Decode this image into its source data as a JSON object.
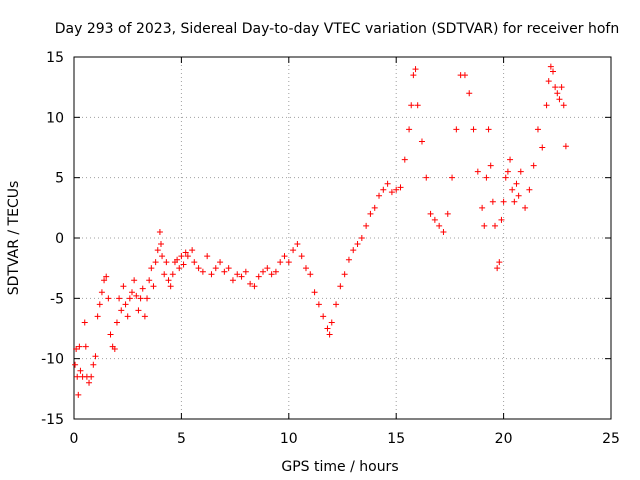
{
  "chart_data": {
    "type": "scatter",
    "title": "Day 293 of 2023, Sidereal Day-to-day VTEC variation (SDTVAR) for receiver hofn",
    "xlabel": "GPS time / hours",
    "ylabel": "SDTVAR / TECUs",
    "xlim": [
      0,
      25
    ],
    "ylim": [
      -15,
      15
    ],
    "xticks": [
      0,
      5,
      10,
      15,
      20,
      25
    ],
    "yticks": [
      -15,
      -10,
      -5,
      0,
      5,
      10,
      15
    ],
    "xtick_labels": [
      "0",
      "5",
      "10",
      "15",
      "20",
      "25"
    ],
    "ytick_labels": [
      "-15",
      "-10",
      "-5",
      "0",
      "5",
      "10",
      "15"
    ],
    "grid": true,
    "marker": "+",
    "color": "#ff0000",
    "series": [
      {
        "points": [
          [
            0.05,
            -10.5
          ],
          [
            0.1,
            -9.2
          ],
          [
            0.15,
            -11.5
          ],
          [
            0.2,
            -13.0
          ],
          [
            0.25,
            -9.0
          ],
          [
            0.3,
            -11.0
          ],
          [
            0.4,
            -11.5
          ],
          [
            0.5,
            -7.0
          ],
          [
            0.55,
            -9.0
          ],
          [
            0.6,
            -11.5
          ],
          [
            0.7,
            -12.0
          ],
          [
            0.8,
            -11.5
          ],
          [
            0.9,
            -10.5
          ],
          [
            1.0,
            -9.8
          ],
          [
            1.1,
            -6.5
          ],
          [
            1.2,
            -5.5
          ],
          [
            1.3,
            -4.5
          ],
          [
            1.4,
            -3.5
          ],
          [
            1.5,
            -3.2
          ],
          [
            1.6,
            -5.0
          ],
          [
            1.7,
            -8.0
          ],
          [
            1.8,
            -9.0
          ],
          [
            1.9,
            -9.2
          ],
          [
            2.0,
            -7.0
          ],
          [
            2.1,
            -5.0
          ],
          [
            2.2,
            -6.0
          ],
          [
            2.3,
            -4.0
          ],
          [
            2.4,
            -5.5
          ],
          [
            2.5,
            -6.5
          ],
          [
            2.6,
            -5.0
          ],
          [
            2.7,
            -4.5
          ],
          [
            2.8,
            -3.5
          ],
          [
            2.9,
            -4.8
          ],
          [
            3.0,
            -6.0
          ],
          [
            3.1,
            -5.0
          ],
          [
            3.2,
            -4.2
          ],
          [
            3.3,
            -6.5
          ],
          [
            3.4,
            -5.0
          ],
          [
            3.5,
            -3.5
          ],
          [
            3.6,
            -2.5
          ],
          [
            3.7,
            -4.0
          ],
          [
            3.8,
            -2.0
          ],
          [
            3.9,
            -1.0
          ],
          [
            4.0,
            0.5
          ],
          [
            4.05,
            -0.5
          ],
          [
            4.1,
            -1.5
          ],
          [
            4.2,
            -3.0
          ],
          [
            4.3,
            -2.0
          ],
          [
            4.4,
            -3.5
          ],
          [
            4.5,
            -4.0
          ],
          [
            4.6,
            -3.0
          ],
          [
            4.7,
            -2.0
          ],
          [
            4.8,
            -1.8
          ],
          [
            4.9,
            -2.5
          ],
          [
            5.0,
            -1.5
          ],
          [
            5.1,
            -2.2
          ],
          [
            5.2,
            -1.2
          ],
          [
            5.3,
            -1.5
          ],
          [
            5.5,
            -1.0
          ],
          [
            5.6,
            -2.0
          ],
          [
            5.8,
            -2.5
          ],
          [
            6.0,
            -2.8
          ],
          [
            6.2,
            -1.5
          ],
          [
            6.4,
            -3.0
          ],
          [
            6.6,
            -2.5
          ],
          [
            6.8,
            -2.0
          ],
          [
            7.0,
            -2.8
          ],
          [
            7.2,
            -2.5
          ],
          [
            7.4,
            -3.5
          ],
          [
            7.6,
            -3.0
          ],
          [
            7.8,
            -3.2
          ],
          [
            8.0,
            -2.8
          ],
          [
            8.2,
            -3.8
          ],
          [
            8.4,
            -4.0
          ],
          [
            8.6,
            -3.2
          ],
          [
            8.8,
            -2.8
          ],
          [
            9.0,
            -2.5
          ],
          [
            9.2,
            -3.0
          ],
          [
            9.4,
            -2.8
          ],
          [
            9.6,
            -2.0
          ],
          [
            9.8,
            -1.5
          ],
          [
            10.0,
            -2.0
          ],
          [
            10.2,
            -1.0
          ],
          [
            10.4,
            -0.5
          ],
          [
            10.6,
            -1.5
          ],
          [
            10.8,
            -2.5
          ],
          [
            11.0,
            -3.0
          ],
          [
            11.2,
            -4.5
          ],
          [
            11.4,
            -5.5
          ],
          [
            11.6,
            -6.5
          ],
          [
            11.8,
            -7.5
          ],
          [
            11.9,
            -8.0
          ],
          [
            12.0,
            -7.0
          ],
          [
            12.2,
            -5.5
          ],
          [
            12.4,
            -4.0
          ],
          [
            12.6,
            -3.0
          ],
          [
            12.8,
            -1.8
          ],
          [
            13.0,
            -1.0
          ],
          [
            13.2,
            -0.5
          ],
          [
            13.4,
            0.0
          ],
          [
            13.6,
            1.0
          ],
          [
            13.8,
            2.0
          ],
          [
            14.0,
            2.5
          ],
          [
            14.2,
            3.5
          ],
          [
            14.4,
            4.0
          ],
          [
            14.6,
            4.5
          ],
          [
            14.8,
            3.8
          ],
          [
            15.0,
            4.0
          ],
          [
            15.2,
            4.2
          ],
          [
            15.4,
            6.5
          ],
          [
            15.6,
            9.0
          ],
          [
            15.7,
            11.0
          ],
          [
            15.8,
            13.5
          ],
          [
            15.9,
            14.0
          ],
          [
            16.0,
            11.0
          ],
          [
            16.2,
            8.0
          ],
          [
            16.4,
            5.0
          ],
          [
            16.6,
            2.0
          ],
          [
            16.8,
            1.5
          ],
          [
            17.0,
            1.0
          ],
          [
            17.2,
            0.5
          ],
          [
            17.4,
            2.0
          ],
          [
            17.6,
            5.0
          ],
          [
            17.8,
            9.0
          ],
          [
            18.0,
            13.5
          ],
          [
            18.2,
            13.5
          ],
          [
            18.4,
            12.0
          ],
          [
            18.6,
            9.0
          ],
          [
            18.8,
            5.5
          ],
          [
            19.0,
            2.5
          ],
          [
            19.1,
            1.0
          ],
          [
            19.2,
            5.0
          ],
          [
            19.3,
            9.0
          ],
          [
            19.4,
            6.0
          ],
          [
            19.5,
            3.0
          ],
          [
            19.6,
            1.0
          ],
          [
            19.7,
            -2.5
          ],
          [
            19.8,
            -2.0
          ],
          [
            19.9,
            1.5
          ],
          [
            20.0,
            3.0
          ],
          [
            20.1,
            5.0
          ],
          [
            20.2,
            5.5
          ],
          [
            20.3,
            6.5
          ],
          [
            20.4,
            4.0
          ],
          [
            20.5,
            3.0
          ],
          [
            20.6,
            4.5
          ],
          [
            20.7,
            3.5
          ],
          [
            20.8,
            5.5
          ],
          [
            21.0,
            2.5
          ],
          [
            21.2,
            4.0
          ],
          [
            21.4,
            6.0
          ],
          [
            21.6,
            9.0
          ],
          [
            21.8,
            7.5
          ],
          [
            22.0,
            11.0
          ],
          [
            22.1,
            13.0
          ],
          [
            22.2,
            14.2
          ],
          [
            22.3,
            13.8
          ],
          [
            22.4,
            12.5
          ],
          [
            22.5,
            12.0
          ],
          [
            22.6,
            11.5
          ],
          [
            22.7,
            12.5
          ],
          [
            22.8,
            11.0
          ],
          [
            22.9,
            7.6
          ]
        ]
      }
    ]
  }
}
